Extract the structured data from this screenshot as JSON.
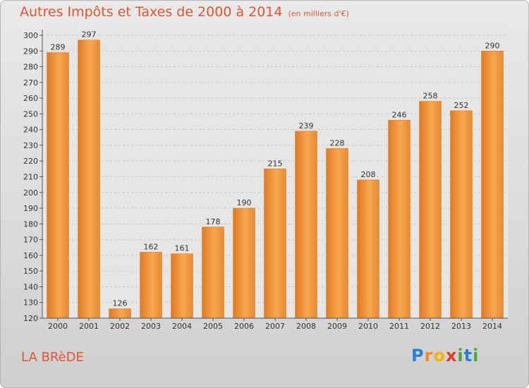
{
  "chart_data": {
    "type": "bar",
    "title": "Autres Impôts et Taxes de 2000 à 2014",
    "subtitle": "(en milliers d'€)",
    "categories": [
      "2000",
      "2001",
      "2002",
      "2003",
      "2004",
      "2005",
      "2006",
      "2007",
      "2008",
      "2009",
      "2010",
      "2011",
      "2012",
      "2013",
      "2014"
    ],
    "values": [
      289,
      297,
      126,
      162,
      161,
      178,
      190,
      215,
      239,
      228,
      208,
      246,
      258,
      252,
      290
    ],
    "ylim": [
      120,
      300
    ],
    "yticks": [
      120,
      130,
      140,
      150,
      160,
      170,
      180,
      190,
      200,
      210,
      220,
      230,
      240,
      250,
      260,
      270,
      280,
      290,
      300
    ],
    "grid": true,
    "bar_color": "#f5a04a"
  },
  "location": "LA BRèDE",
  "logo": {
    "letters": [
      "P",
      "r",
      "o",
      "x",
      "i",
      "t",
      "i"
    ]
  }
}
